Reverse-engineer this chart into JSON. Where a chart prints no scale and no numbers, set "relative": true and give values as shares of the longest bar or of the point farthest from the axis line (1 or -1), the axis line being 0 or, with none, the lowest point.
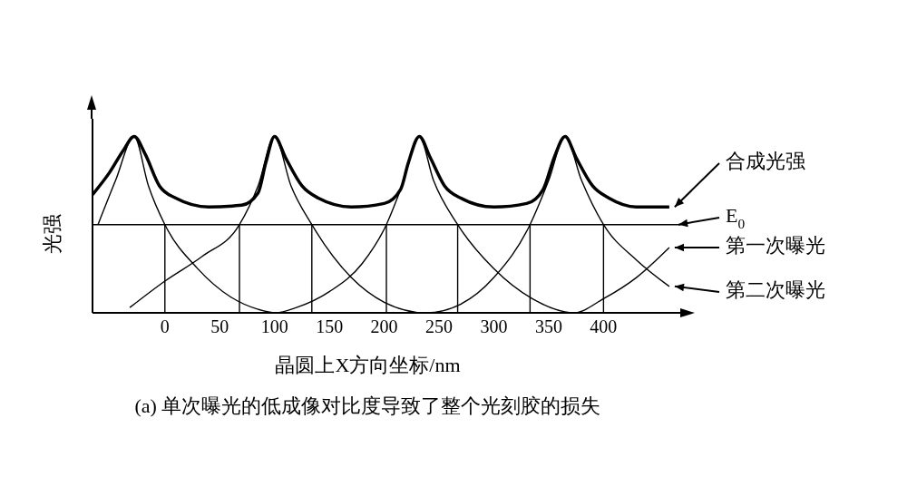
{
  "chart_data": {
    "type": "line",
    "relative": true,
    "xlabel": "晶圆上X方向坐标/nm",
    "ylabel": "光强",
    "xlim": [
      -66,
      470
    ],
    "xticks": [
      0,
      50,
      100,
      150,
      200,
      250,
      300,
      350,
      400
    ],
    "legend": "right",
    "marker": "none",
    "line_style": "solid",
    "series": [
      {
        "name": "合成光强",
        "color": "#000000",
        "x": [
          -66,
          -50,
          -38,
          -28,
          -18,
          -5,
          10,
          40,
          70,
          85,
          92,
          100,
          110,
          125,
          140,
          170,
          200,
          215,
          222,
          232,
          242,
          255,
          270,
          300,
          330,
          345,
          355,
          365,
          375,
          390,
          405,
          430,
          460
        ],
        "values": [
          0.67,
          0.8,
          0.92,
          1.0,
          0.9,
          0.72,
          0.65,
          0.6,
          0.61,
          0.68,
          0.85,
          1.0,
          0.88,
          0.72,
          0.65,
          0.6,
          0.62,
          0.7,
          0.85,
          1.0,
          0.88,
          0.72,
          0.65,
          0.6,
          0.62,
          0.7,
          0.88,
          1.0,
          0.88,
          0.72,
          0.65,
          0.6,
          0.6
        ]
      },
      {
        "name": "第一次曝光",
        "color": "#000000",
        "x": [
          -61,
          -45,
          -28,
          -15,
          0,
          30,
          60,
          85,
          101,
          120,
          150,
          180,
          202,
          215,
          232,
          245,
          267,
          300,
          335,
          373,
          400,
          430,
          460
        ],
        "values": [
          0.5,
          0.75,
          1.0,
          0.72,
          0.5,
          0.25,
          0.09,
          0.02,
          0,
          0.03,
          0.12,
          0.28,
          0.5,
          0.7,
          1.0,
          0.75,
          0.5,
          0.25,
          0.08,
          0,
          0.08,
          0.2,
          0.37
        ]
      },
      {
        "name": "第二次曝光",
        "color": "#000000",
        "x": [
          -32,
          0,
          34,
          68,
          85,
          100,
          115,
          134,
          170,
          200,
          238,
          270,
          300,
          333,
          350,
          365,
          380,
          400,
          430,
          460
        ],
        "values": [
          0.03,
          0.18,
          0.32,
          0.5,
          0.72,
          1.0,
          0.72,
          0.5,
          0.2,
          0.06,
          0,
          0.05,
          0.2,
          0.5,
          0.75,
          1.0,
          0.75,
          0.5,
          0.3,
          0.15
        ]
      }
    ],
    "ref_lines": [
      {
        "axis": "y",
        "value": 0.5,
        "label": "E$_{0}$",
        "color": "#000000"
      },
      {
        "axis": "x",
        "value": 0,
        "color": "#000000"
      },
      {
        "axis": "x",
        "value": 68,
        "color": "#000000"
      },
      {
        "axis": "x",
        "value": 134,
        "color": "#000000"
      },
      {
        "axis": "x",
        "value": 202,
        "color": "#000000"
      },
      {
        "axis": "x",
        "value": 267,
        "color": "#000000"
      },
      {
        "axis": "x",
        "value": 333,
        "color": "#000000"
      },
      {
        "axis": "x",
        "value": 400,
        "color": "#000000"
      }
    ],
    "annotations": [
      "(a) 单次曝光的低成像对比度导致了整个光刻胶的损失"
    ]
  }
}
